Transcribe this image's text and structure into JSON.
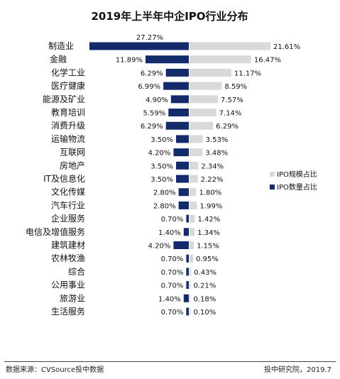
{
  "chart_data": {
    "type": "bar",
    "title": "2019年上半年中企IPO行业分布",
    "categories": [
      "制造业",
      "金融",
      "化学工业",
      "医疗健康",
      "能源及矿业",
      "教育培训",
      "消费升级",
      "运输物流",
      "互联网",
      "房地产",
      "IT及信息化",
      "文化传媒",
      "汽车行业",
      "企业服务",
      "电信及增值服务",
      "建筑建材",
      "农林牧渔",
      "综合",
      "公用事业",
      "旅游业",
      "生活服务"
    ],
    "series": [
      {
        "name": "IPO数量占比",
        "color": "#142b6b",
        "values": [
          27.27,
          11.89,
          6.29,
          6.99,
          4.9,
          5.59,
          6.29,
          3.5,
          4.2,
          3.5,
          3.5,
          2.8,
          2.8,
          0.7,
          1.4,
          4.2,
          0.7,
          0.7,
          0.7,
          1.4,
          0.7
        ],
        "labels": [
          "27.27%",
          "11.89%",
          "6.29%",
          "6.99%",
          "4.90%",
          "5.59%",
          "6.29%",
          "3.50%",
          "4.20%",
          "3.50%",
          "3.50%",
          "2.80%",
          "2.80%",
          "0.70%",
          "1.40%",
          "4.20%",
          "0.70%",
          "0.70%",
          "0.70%",
          "1.40%",
          "0.70%"
        ]
      },
      {
        "name": "IPO规模占比",
        "color": "#d9d9d9",
        "values": [
          21.61,
          16.47,
          11.17,
          8.59,
          7.57,
          7.14,
          6.29,
          3.53,
          3.48,
          2.34,
          2.22,
          1.8,
          1.99,
          1.42,
          1.34,
          1.15,
          0.95,
          0.43,
          0.21,
          0.18,
          0.1
        ],
        "labels": [
          "21.61%",
          "16.47%",
          "11.17%",
          "8.59%",
          "7.57%",
          "7.14%",
          "6.29%",
          "3.53%",
          "3.48%",
          "2.34%",
          "2.22%",
          "1.80%",
          "1.99%",
          "1.42%",
          "1.34%",
          "1.15%",
          "0.95%",
          "0.43%",
          "0.21%",
          "0.18%",
          "0.10%"
        ]
      }
    ],
    "legend": {
      "position": "right",
      "items": [
        {
          "label": "IPO规模占比",
          "color": "#d9d9d9"
        },
        {
          "label": "IPO数量占比",
          "color": "#142b6b"
        }
      ]
    }
  },
  "footer": {
    "source": "数据来源：CVSource投中数据",
    "credit": "投中研究院，2019.7"
  }
}
